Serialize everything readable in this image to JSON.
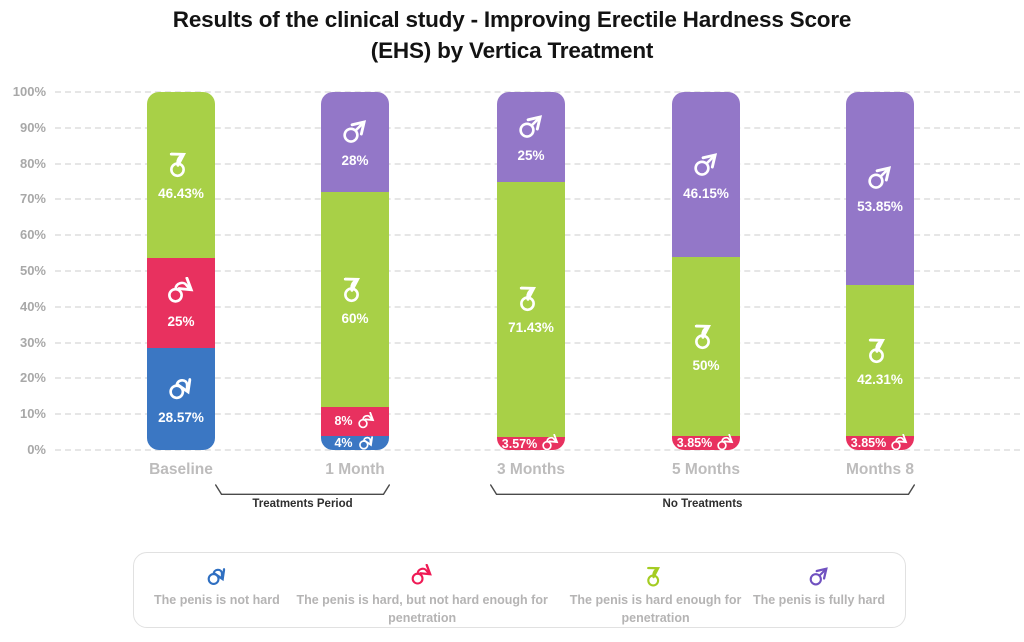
{
  "title": "Results of the clinical study - Improving Erectile Hardness Score\n(EHS) by Vertica Treatment",
  "chart_data": {
    "type": "bar",
    "stacked": true,
    "unit": "%",
    "ylim": [
      0,
      100
    ],
    "grid": "dashed-horizontal",
    "yticks": [
      "0%",
      "10%",
      "20%",
      "30%",
      "40%",
      "50%",
      "60%",
      "70%",
      "80%",
      "90%",
      "100%"
    ],
    "categories": [
      "Baseline",
      "1 Month",
      "3 Months",
      "5 Months",
      "Months 8"
    ],
    "stack_order": "bottom_to_top",
    "series": [
      {
        "key": "not_hard",
        "legend_label": "The penis is not hard",
        "color": "#3b77c3",
        "icon_color": "#2f6fc1",
        "icon": "male-symbol-down-icon",
        "values": [
          28.57,
          4,
          0,
          0,
          0
        ]
      },
      {
        "key": "hard_not_enough",
        "legend_label": "The penis is hard, but not hard enough for penetration",
        "color": "#e8315f",
        "icon_color": "#ef1a55",
        "icon": "male-symbol-horizontal-icon",
        "values": [
          25,
          8,
          3.57,
          3.85,
          3.85
        ]
      },
      {
        "key": "hard_enough",
        "legend_label": "The penis is hard enough for penetration",
        "color": "#a8d047",
        "icon_color": "#a4cc22",
        "icon": "male-symbol-rising-icon",
        "values": [
          46.43,
          60,
          71.43,
          50,
          42.31
        ]
      },
      {
        "key": "fully_hard",
        "legend_label": "The penis is fully hard",
        "color": "#9377c8",
        "icon_color": "#7051c0",
        "icon": "male-symbol-up-icon",
        "values": [
          0,
          28,
          25,
          46.15,
          53.85
        ]
      }
    ],
    "annotations": [
      {
        "label": "Treatments Period",
        "from_index": 0,
        "to_index": 1
      },
      {
        "label": "No Treatments",
        "from_index": 2,
        "to_index": 4
      }
    ]
  }
}
